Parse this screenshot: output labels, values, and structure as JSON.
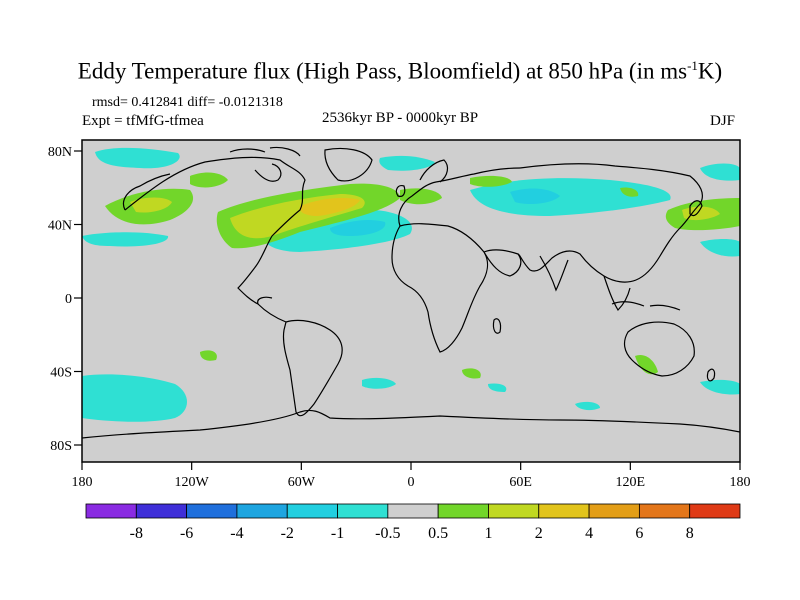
{
  "title": {
    "main": "Eddy Temperature flux (High Pass, Bloomfield) at 850 hPa (in ms",
    "sup": "-1",
    "end": "K)"
  },
  "stats": "rmsd= 0.412841 diff= -0.0121318",
  "experiment": "Expt = tfMfG-tfmea",
  "period": "2536kyr BP - 0000kyr BP",
  "season": "DJF",
  "axes": {
    "x_ticks": [
      "180",
      "120W",
      "60W",
      "0",
      "60E",
      "120E",
      "180"
    ],
    "y_ticks": [
      "80N",
      "40N",
      "0",
      "40S",
      "80S"
    ]
  },
  "colorbar": {
    "labels": [
      "-8",
      "-6",
      "-4",
      "-2",
      "-1",
      "-0.5",
      "0.5",
      "1",
      "2",
      "4",
      "6",
      "8"
    ],
    "colors": [
      "#8a2be2",
      "#3f2fd8",
      "#1f6fdc",
      "#1ea5e0",
      "#22cfe0",
      "#2fe0d3",
      "#cfcfcf",
      "#72d62a",
      "#c0d822",
      "#e2c41c",
      "#e39e17",
      "#e3761a",
      "#df3a16"
    ]
  },
  "colors": {
    "land_ocean_background": "#cfcfcf",
    "coastline": "#000000"
  }
}
